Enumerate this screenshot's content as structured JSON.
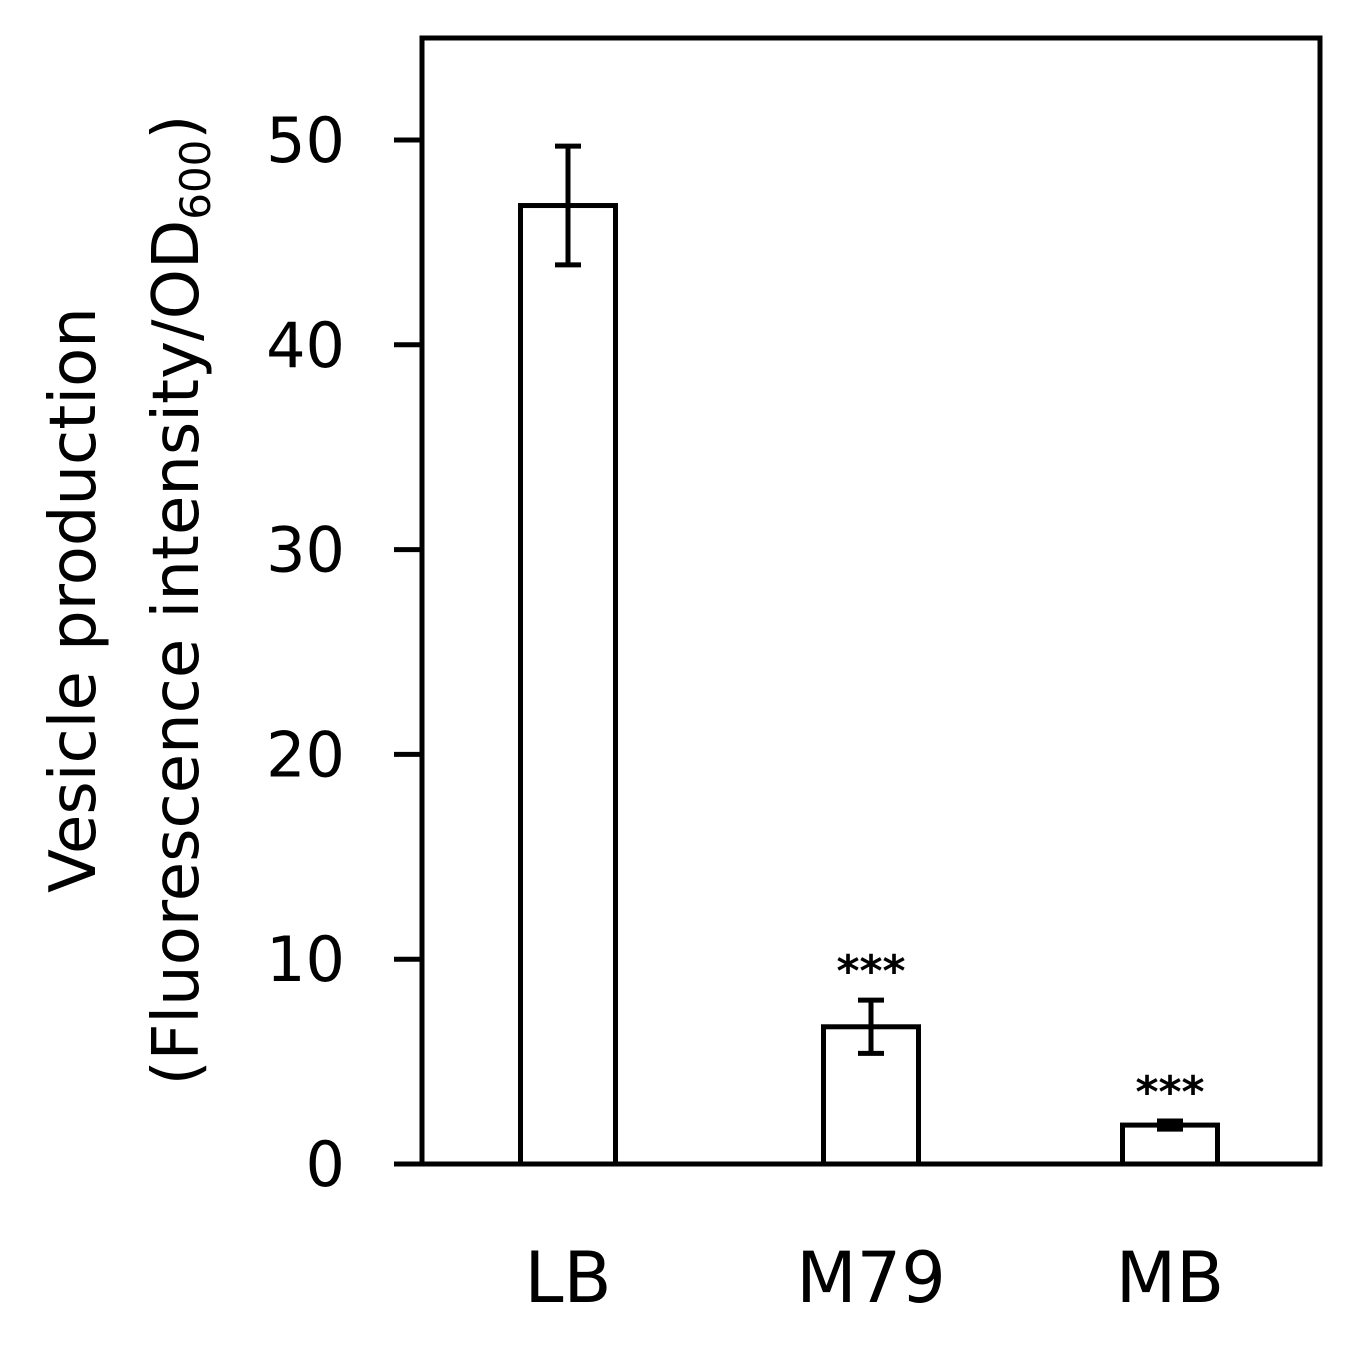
{
  "chart_data": {
    "type": "bar",
    "categories": [
      "LB",
      "M79",
      "MB"
    ],
    "values": [
      46.8,
      6.7,
      1.9
    ],
    "errors": [
      2.9,
      1.3,
      0.2
    ],
    "annotations": [
      "",
      "***",
      "***"
    ],
    "ylabel_line1": "Vesicle production",
    "ylabel_line2_main": "(Fluorescence intensity/OD",
    "ylabel_line2_sub": "600",
    "ylabel_line2_end": ")",
    "yticks": [
      0,
      10,
      20,
      30,
      40,
      50
    ],
    "ylim": [
      0,
      55
    ],
    "grid": false,
    "bar_fill": "#ffffff",
    "bar_stroke": "#000000"
  }
}
